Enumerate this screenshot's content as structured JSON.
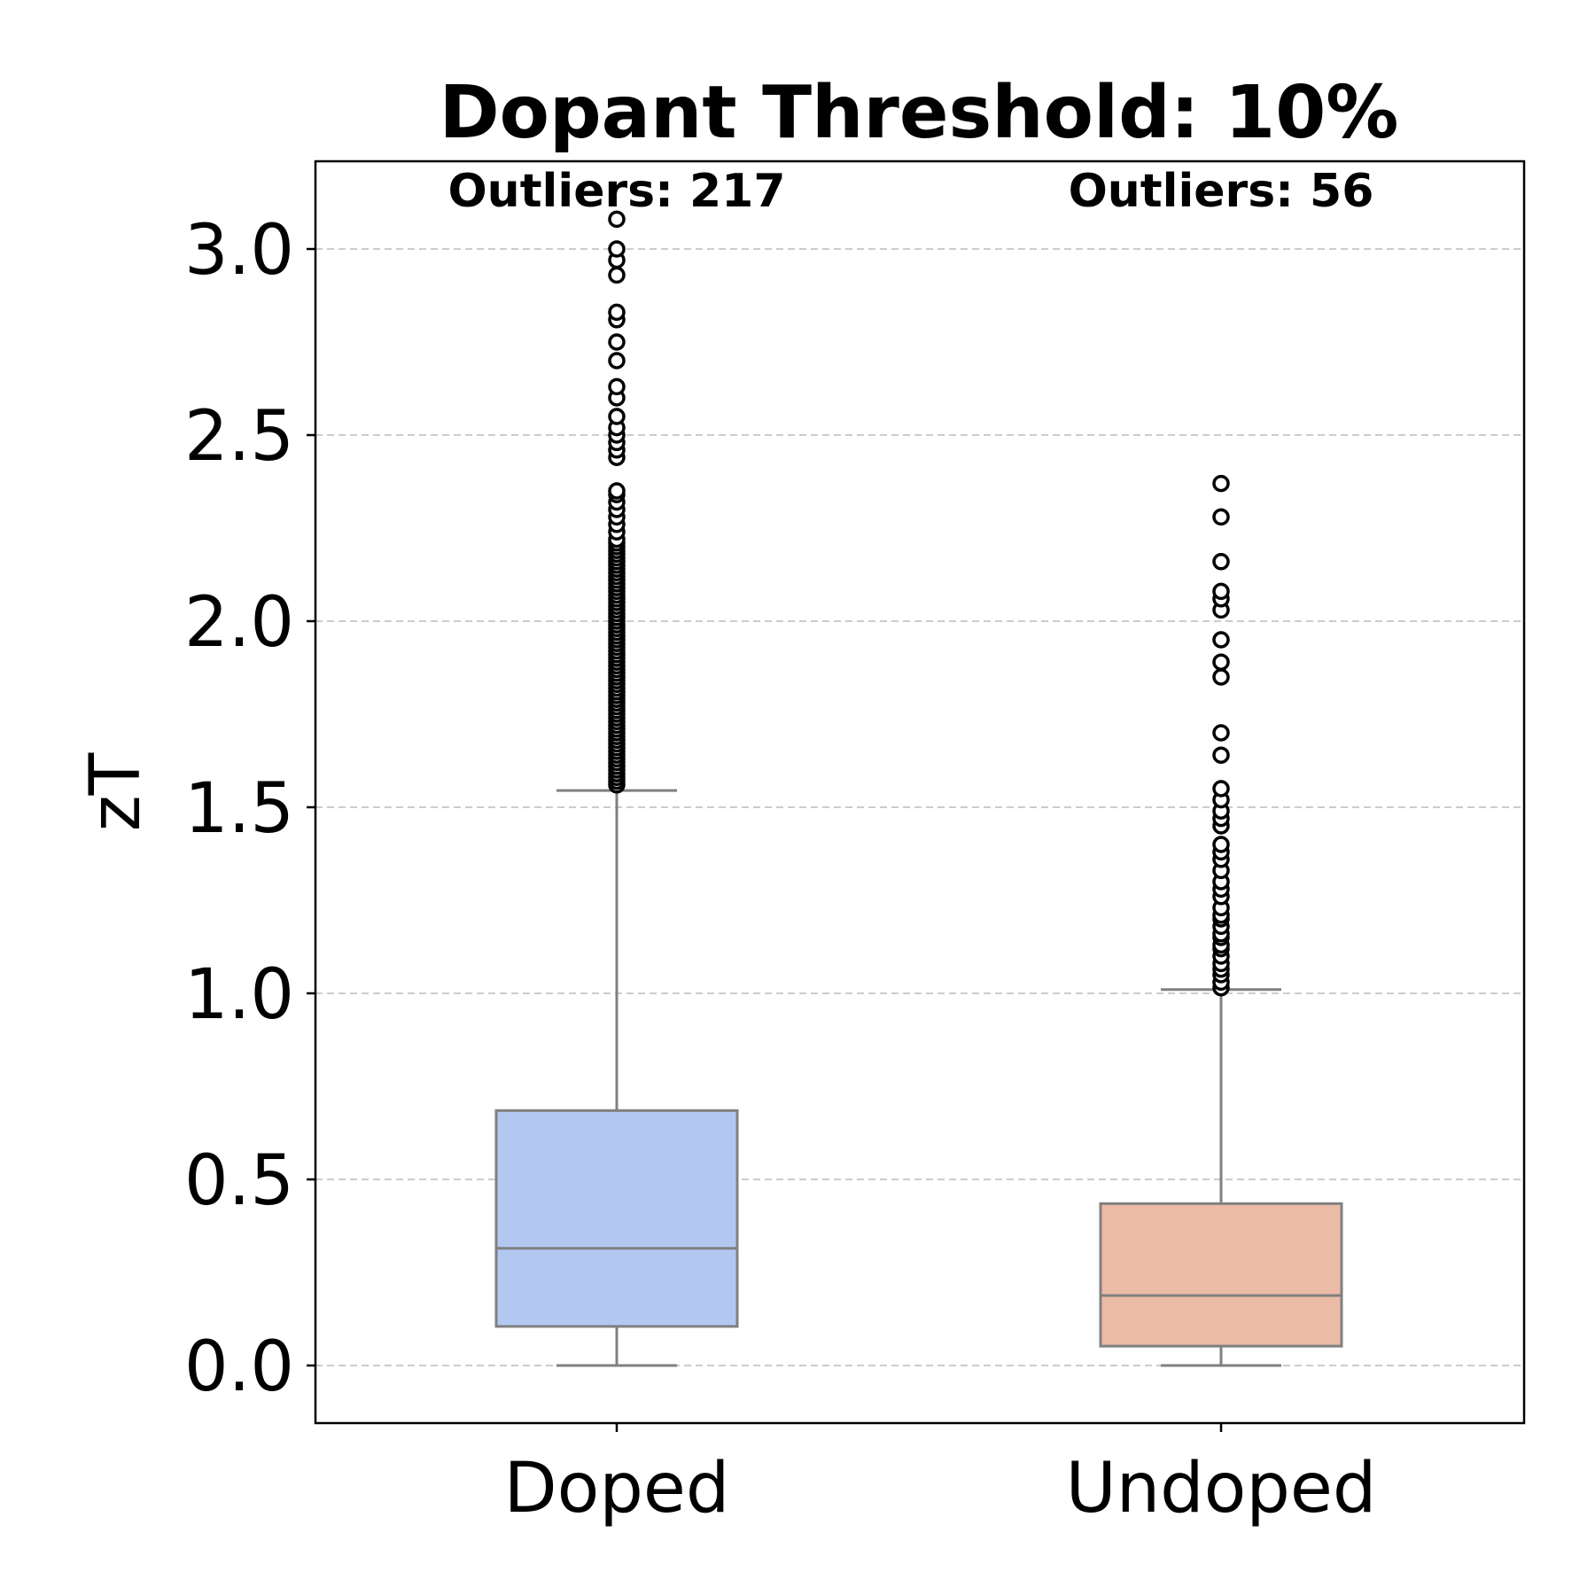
{
  "chart_data": {
    "type": "box",
    "title": "Dopant Threshold: 10%",
    "xlabel": "",
    "ylabel": "zT",
    "ylim": [
      -0.15,
      3.24
    ],
    "yticks": [
      0.0,
      0.5,
      1.0,
      1.5,
      2.0,
      2.5,
      3.0
    ],
    "ytick_labels": [
      "0.0",
      "0.5",
      "1.0",
      "1.5",
      "2.0",
      "2.5",
      "3.0"
    ],
    "grid": "y-dashed",
    "categories": [
      "Doped",
      "Undoped"
    ],
    "boxes": [
      {
        "name": "Doped",
        "color": "#b3c8f1",
        "whisker_low": 0.0,
        "q1": 0.105,
        "median": 0.315,
        "q3": 0.685,
        "whisker_high": 1.545,
        "outliers_label": "Outliers: 217",
        "outliers": [
          1.56,
          1.57,
          1.58,
          1.59,
          1.6,
          1.61,
          1.62,
          1.63,
          1.64,
          1.65,
          1.66,
          1.67,
          1.68,
          1.69,
          1.7,
          1.71,
          1.72,
          1.73,
          1.74,
          1.75,
          1.76,
          1.77,
          1.78,
          1.79,
          1.8,
          1.81,
          1.82,
          1.83,
          1.84,
          1.85,
          1.86,
          1.87,
          1.88,
          1.89,
          1.9,
          1.91,
          1.92,
          1.93,
          1.94,
          1.95,
          1.96,
          1.97,
          1.98,
          1.99,
          2.0,
          2.01,
          2.02,
          2.03,
          2.04,
          2.05,
          2.06,
          2.07,
          2.08,
          2.09,
          2.1,
          2.11,
          2.12,
          2.13,
          2.14,
          2.15,
          2.16,
          2.17,
          2.18,
          2.19,
          2.2,
          2.21,
          2.22,
          2.24,
          2.26,
          2.28,
          2.3,
          2.32,
          2.34,
          2.35,
          2.44,
          2.46,
          2.48,
          2.5,
          2.52,
          2.55,
          2.6,
          2.63,
          2.7,
          2.75,
          2.81,
          2.83,
          2.93,
          2.97,
          3.0,
          3.08
        ]
      },
      {
        "name": "Undoped",
        "color": "#ebbba6",
        "whisker_low": 0.0,
        "q1": 0.052,
        "median": 0.188,
        "q3": 0.435,
        "whisker_high": 1.01,
        "outliers_label": "Outliers: 56",
        "outliers": [
          1.015,
          1.03,
          1.05,
          1.065,
          1.08,
          1.1,
          1.12,
          1.13,
          1.15,
          1.16,
          1.18,
          1.2,
          1.21,
          1.23,
          1.26,
          1.28,
          1.3,
          1.33,
          1.36,
          1.38,
          1.4,
          1.45,
          1.47,
          1.49,
          1.52,
          1.55,
          1.64,
          1.7,
          1.85,
          1.89,
          1.95,
          2.03,
          2.06,
          2.08,
          2.16,
          2.28,
          2.37
        ]
      }
    ]
  }
}
